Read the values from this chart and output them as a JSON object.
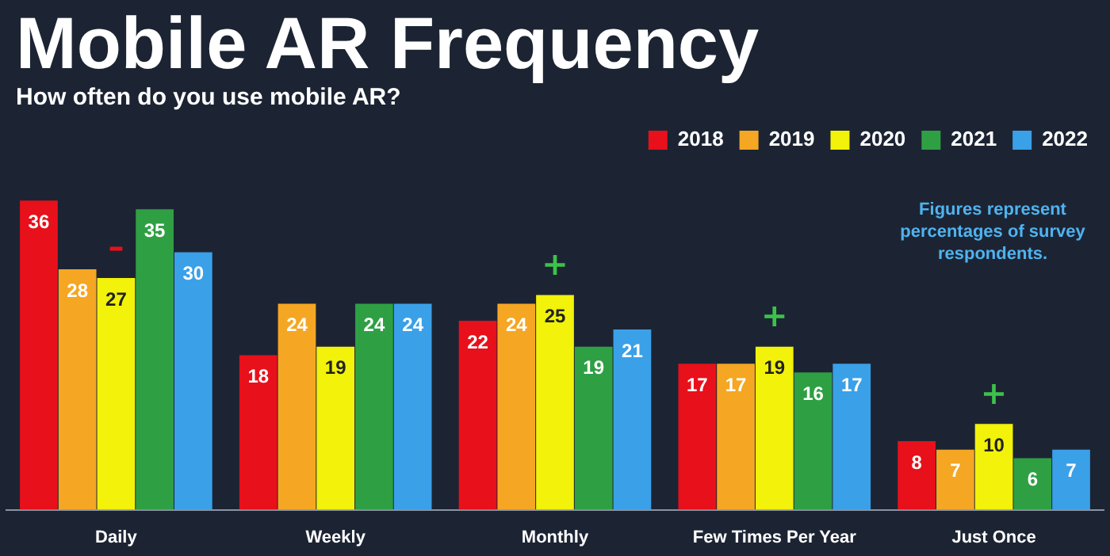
{
  "chart_data": {
    "type": "bar",
    "title": "Mobile AR Frequency",
    "subtitle": "How often do you use mobile AR?",
    "categories": [
      "Daily",
      "Weekly",
      "Monthly",
      "Few Times Per Year",
      "Just Once"
    ],
    "series": [
      {
        "name": "2018",
        "color": "#e8101a",
        "values": [
          36,
          18,
          22,
          17,
          8
        ]
      },
      {
        "name": "2019",
        "color": "#f5a623",
        "values": [
          28,
          24,
          24,
          17,
          7
        ]
      },
      {
        "name": "2020",
        "color": "#f2f20a",
        "values": [
          27,
          19,
          25,
          19,
          10
        ]
      },
      {
        "name": "2021",
        "color": "#2ea043",
        "values": [
          35,
          24,
          19,
          16,
          6
        ]
      },
      {
        "name": "2022",
        "color": "#3aa0e8",
        "values": [
          30,
          24,
          21,
          17,
          7
        ]
      }
    ],
    "data_labels": true,
    "legend": "top right",
    "grid": false,
    "annotations": [
      {
        "text": "–",
        "x": "Daily",
        "y": 27
      },
      {
        "text": "+",
        "x": "Monthly",
        "y": 25
      },
      {
        "text": "+",
        "x": "Few Times Per Year",
        "y": 19
      },
      {
        "text": "+",
        "x": "Just Once",
        "y": 10
      },
      "Figures represent percentages of survey respondents."
    ]
  }
}
